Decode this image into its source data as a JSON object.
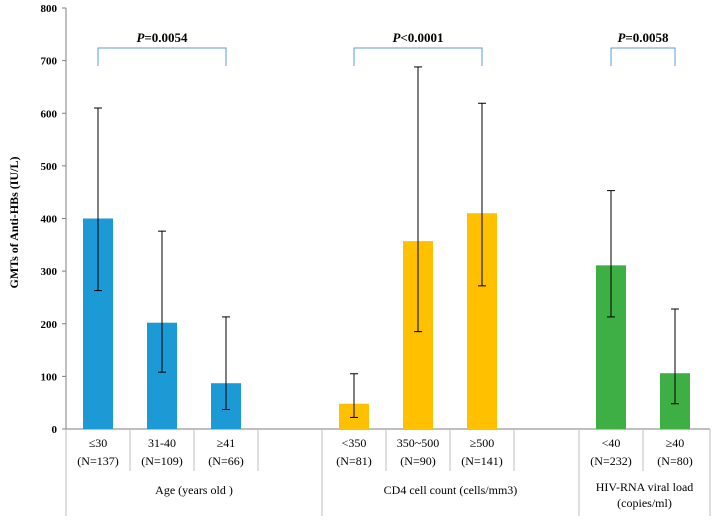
{
  "chart_data": {
    "type": "bar",
    "ylabel": "GMTs of Anti-HBs (IU/L)",
    "ylim": [
      0,
      800
    ],
    "yticks": [
      "0",
      "100",
      "200",
      "300",
      "400",
      "500",
      "600",
      "700",
      "800"
    ],
    "groups": [
      {
        "name": "Age (years old )",
        "name_lines": [
          "Age (years old )"
        ],
        "color": "#1B9AD6",
        "bars": [
          {
            "label": "≤30",
            "n": "(N=137)",
            "value": 400,
            "err_low": 263,
            "err_high": 610
          },
          {
            "label": "31-40",
            "n": "(N=109)",
            "value": 202,
            "err_low": 108,
            "err_high": 376
          },
          {
            "label": "≥41",
            "n": "(N=66)",
            "value": 87,
            "err_low": 37,
            "err_high": 213
          }
        ],
        "pvalue": {
          "prefix": "P",
          "text": "=0.0054"
        }
      },
      {
        "name": "CD4 cell count (cells/mm3)",
        "name_lines": [
          "CD4 cell count (cells/mm3)"
        ],
        "color": "#FFC000",
        "bars": [
          {
            "label": "<350",
            "n": "(N=81)",
            "value": 48,
            "err_low": 22,
            "err_high": 105
          },
          {
            "label": "350~500",
            "n": "(N=90)",
            "value": 357,
            "err_low": 185,
            "err_high": 688
          },
          {
            "label": "≥500",
            "n": "(N=141)",
            "value": 410,
            "err_low": 272,
            "err_high": 619
          }
        ],
        "pvalue": {
          "prefix": "P",
          "text": "<0.0001"
        }
      },
      {
        "name": "HIV-RNA viral load (copies/ml)",
        "name_lines": [
          "HIV-RNA viral load",
          "(copies/ml)"
        ],
        "color": "#3DAF44",
        "bars": [
          {
            "label": "<40",
            "n": "(N=232)",
            "value": 311,
            "err_low": 213,
            "err_high": 453
          },
          {
            "label": "≥40",
            "n": "(N=80)",
            "value": 106,
            "err_low": 48,
            "err_high": 228
          }
        ],
        "pvalue": {
          "prefix": "P",
          "text": "=0.0058"
        }
      }
    ]
  }
}
